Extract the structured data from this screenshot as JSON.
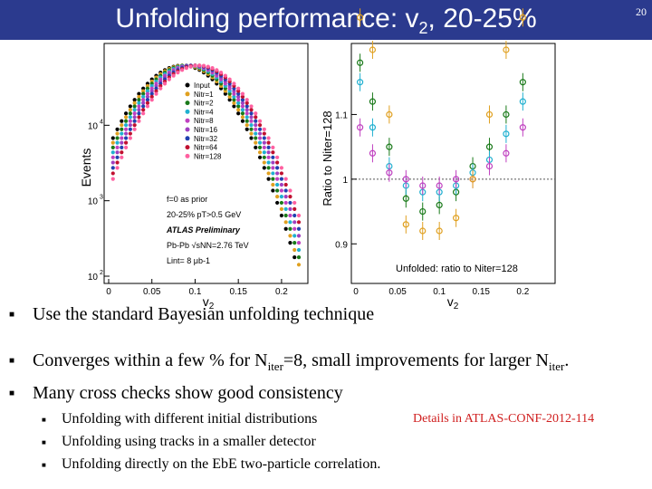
{
  "slide": {
    "title_main": "Unfolding performance: v",
    "title_sub": "2",
    "title_tail": ", 20-25%",
    "page_number": "20"
  },
  "bullets": [
    {
      "text": "Use the standard Bayesian unfolding technique"
    },
    {
      "pre": "Converges within a few % for N",
      "sub1": "iter",
      "mid": "=8, small improvements for larger N",
      "sub2": "iter",
      "post": "."
    },
    {
      "text": "Many cross checks show good consistency"
    }
  ],
  "sub_bullets": [
    "Unfolding with different initial distributions",
    "Unfolding using tracks in a smaller detector",
    "Unfolding directly on the EbE two-particle correlation."
  ],
  "note": "Details in ATLAS-CONF-2012-114",
  "chart_data": [
    {
      "type": "scatter",
      "ylabel": "Events",
      "xlabel": "v2",
      "yscale": "log",
      "xticks": [
        "0",
        "0.05",
        "0.1",
        "0.15",
        "0.2"
      ],
      "yticks": [
        "10",
        "10",
        "10"
      ],
      "ytick_exponents": [
        "4",
        "3",
        "2"
      ],
      "legend": [
        "Input",
        "Nitr=1",
        "Nitr=2",
        "Nitr=4",
        "Nitr=8",
        "Nitr=16",
        "Nitr=32",
        "Nitr=64",
        "Nitr=128"
      ],
      "series_colors": [
        "#000000",
        "#e0a020",
        "#1a7a1a",
        "#20b0d0",
        "#c040c0",
        "#a040c0",
        "#2040b0",
        "#c01030",
        "#ff60a0"
      ],
      "annotations": [
        "f=0 as prior",
        "20-25% pT>0.5 GeV",
        "ATLAS Preliminary",
        "Pb-Pb √sNN=2.76 TeV",
        "Lint= 8 μb-1"
      ],
      "x": [
        0.0,
        0.02,
        0.04,
        0.06,
        0.08,
        0.1,
        0.12,
        0.14,
        0.16,
        0.18,
        0.2
      ],
      "series": [
        {
          "name": "Input",
          "values": [
            2000,
            8000,
            20000,
            40000,
            58000,
            62000,
            50000,
            25000,
            8000,
            2000,
            400
          ]
        }
      ]
    },
    {
      "type": "scatter",
      "ylabel": "Ratio to Niter=128",
      "xlabel": "v2",
      "ylim": [
        0.85,
        1.2
      ],
      "yticks": [
        "1.1",
        "1",
        "0.9"
      ],
      "xticks": [
        "0",
        "0.05",
        "0.1",
        "0.15",
        "0.2"
      ],
      "legend_text": "Unfolded: ratio to Niter=128",
      "x": [
        0.005,
        0.02,
        0.04,
        0.06,
        0.08,
        0.1,
        0.12,
        0.14,
        0.16,
        0.18,
        0.2
      ],
      "series": [
        {
          "name": "Nitr=2",
          "values": [
            1.18,
            1.12,
            1.05,
            0.97,
            0.95,
            0.96,
            0.98,
            1.02,
            1.05,
            1.1,
            1.15
          ]
        },
        {
          "name": "Nitr=4",
          "values": [
            1.15,
            1.08,
            1.02,
            0.99,
            0.98,
            0.98,
            0.99,
            1.01,
            1.03,
            1.07,
            1.12
          ]
        },
        {
          "name": "Nitr=8",
          "values": [
            1.08,
            1.04,
            1.01,
            1.0,
            0.99,
            0.99,
            1.0,
            1.0,
            1.02,
            1.04,
            1.08
          ]
        },
        {
          "name": "Nitr=1",
          "values": [
            1.25,
            1.2,
            1.1,
            0.93,
            0.92,
            0.92,
            0.94,
            1.0,
            1.1,
            1.2,
            1.25
          ]
        }
      ]
    }
  ]
}
